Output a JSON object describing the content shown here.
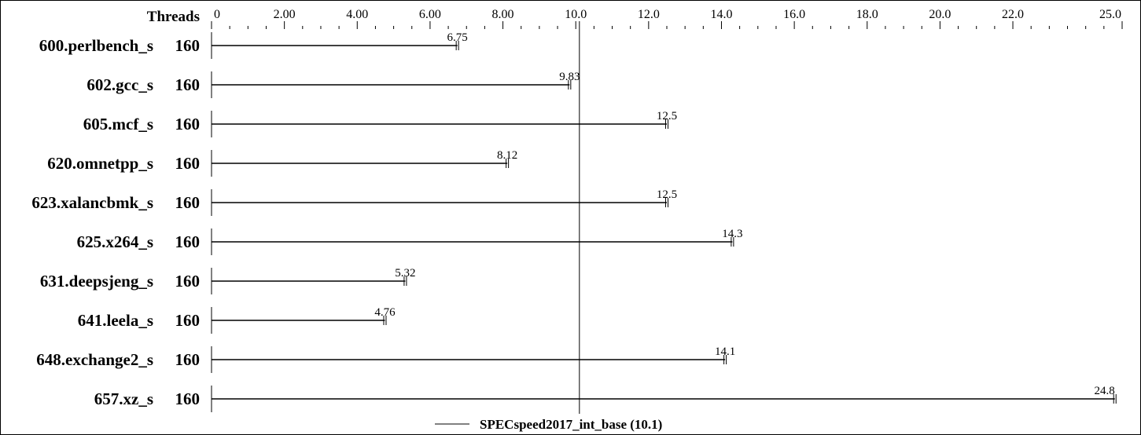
{
  "chart_data": {
    "type": "bar",
    "orientation": "horizontal",
    "threads_header": "Threads",
    "benchmarks": [
      {
        "name": "600.perlbench_s",
        "threads": "160",
        "value": 6.75,
        "label": "6.75"
      },
      {
        "name": "602.gcc_s",
        "threads": "160",
        "value": 9.83,
        "label": "9.83"
      },
      {
        "name": "605.mcf_s",
        "threads": "160",
        "value": 12.5,
        "label": "12.5"
      },
      {
        "name": "620.omnetpp_s",
        "threads": "160",
        "value": 8.12,
        "label": "8.12"
      },
      {
        "name": "623.xalancbmk_s",
        "threads": "160",
        "value": 12.5,
        "label": "12.5"
      },
      {
        "name": "625.x264_s",
        "threads": "160",
        "value": 14.3,
        "label": "14.3"
      },
      {
        "name": "631.deepsjeng_s",
        "threads": "160",
        "value": 5.32,
        "label": "5.32"
      },
      {
        "name": "641.leela_s",
        "threads": "160",
        "value": 4.76,
        "label": "4.76"
      },
      {
        "name": "648.exchange2_s",
        "threads": "160",
        "value": 14.1,
        "label": "14.1"
      },
      {
        "name": "657.xz_s",
        "threads": "160",
        "value": 24.8,
        "label": "24.8"
      }
    ],
    "xlim": [
      0,
      25.0
    ],
    "major_ticks": [
      {
        "value": 0,
        "label": "0"
      },
      {
        "value": 2,
        "label": "2.00"
      },
      {
        "value": 4,
        "label": "4.00"
      },
      {
        "value": 6,
        "label": "6.00"
      },
      {
        "value": 8,
        "label": "8.00"
      },
      {
        "value": 10,
        "label": "10.0"
      },
      {
        "value": 12,
        "label": "12.0"
      },
      {
        "value": 14,
        "label": "14.0"
      },
      {
        "value": 16,
        "label": "16.0"
      },
      {
        "value": 18,
        "label": "18.0"
      },
      {
        "value": 20,
        "label": "20.0"
      },
      {
        "value": 22,
        "label": "22.0"
      },
      {
        "value": 25,
        "label": "25.0"
      }
    ],
    "minor_tick_step": 0.5,
    "reference_line": {
      "value": 10.1
    },
    "legend": {
      "label": "SPECspeed2017_int_base (10.1)",
      "position": "bottom-center"
    }
  }
}
